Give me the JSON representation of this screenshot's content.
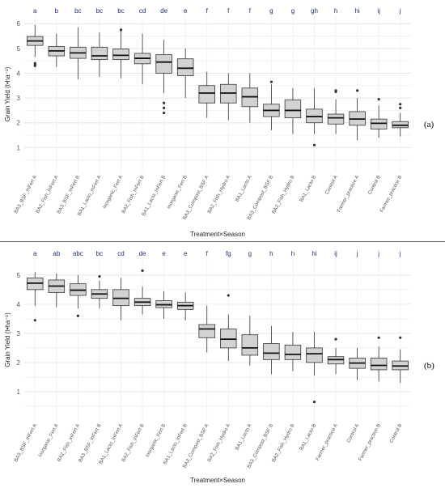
{
  "chart_data": [
    {
      "panel_label": "(a)",
      "type": "box",
      "xlabel": "Treatment×Season",
      "ylabel": "Grain Yield (t•ha⁻¹)",
      "ylim": [
        0,
        6.3
      ],
      "yticks": [
        1,
        2,
        3,
        4,
        5,
        6
      ],
      "grid": true,
      "categories": [
        "BA3_BSF_InFert A",
        "BA2_Fish_InFert A",
        "BA3_BSF_InFert B",
        "BA1_Lacto_InFert A",
        "Inorganic_Fert A",
        "BA2_Fish_InFert B",
        "BA1_Lacto_InFert B",
        "Inorganic_Fert B",
        "BA3_Compost_BSF A",
        "BA2_Fish_Hydro A",
        "BA1_Lacto A",
        "BA3_Compost_BSF B",
        "BA2_Fish_Hydro B",
        "BA1_Lacto B",
        "Control A",
        "Farmer_practice A",
        "Control B",
        "Farmer_practice B"
      ],
      "letters": [
        "a",
        "b",
        "bc",
        "bc",
        "bc",
        "cd",
        "de",
        "e",
        "f",
        "f",
        "f",
        "g",
        "g",
        "gh",
        "h",
        "hi",
        "ij",
        "j"
      ],
      "boxes": [
        {
          "min": 4.65,
          "q1": 5.12,
          "median": 5.3,
          "q3": 5.48,
          "max": 5.95,
          "outliers": [
            4.3,
            4.35,
            4.4
          ]
        },
        {
          "min": 4.25,
          "q1": 4.7,
          "median": 4.9,
          "q3": 5.08,
          "max": 5.6,
          "outliers": []
        },
        {
          "min": 3.75,
          "q1": 4.6,
          "median": 4.82,
          "q3": 5.05,
          "max": 5.85,
          "outliers": []
        },
        {
          "min": 3.85,
          "q1": 4.55,
          "median": 4.7,
          "q3": 5.05,
          "max": 5.65,
          "outliers": []
        },
        {
          "min": 3.8,
          "q1": 4.55,
          "median": 4.72,
          "q3": 4.98,
          "max": 5.75,
          "outliers": [
            5.75
          ]
        },
        {
          "min": 3.55,
          "q1": 4.38,
          "median": 4.6,
          "q3": 4.8,
          "max": 5.6,
          "outliers": []
        },
        {
          "min": 3.2,
          "q1": 4.0,
          "median": 4.45,
          "q3": 4.75,
          "max": 5.35,
          "outliers": [
            2.4,
            2.6,
            2.8
          ]
        },
        {
          "min": 3.0,
          "q1": 3.9,
          "median": 4.2,
          "q3": 4.58,
          "max": 5.0,
          "outliers": []
        },
        {
          "min": 2.2,
          "q1": 2.8,
          "median": 3.2,
          "q3": 3.5,
          "max": 4.05,
          "outliers": []
        },
        {
          "min": 2.1,
          "q1": 2.8,
          "median": 3.2,
          "q3": 3.55,
          "max": 4.0,
          "outliers": []
        },
        {
          "min": 2.0,
          "q1": 2.65,
          "median": 3.05,
          "q3": 3.4,
          "max": 4.0,
          "outliers": []
        },
        {
          "min": 1.7,
          "q1": 2.25,
          "median": 2.5,
          "q3": 2.75,
          "max": 3.55,
          "outliers": [
            3.65
          ]
        },
        {
          "min": 1.55,
          "q1": 2.2,
          "median": 2.5,
          "q3": 2.92,
          "max": 3.4,
          "outliers": []
        },
        {
          "min": 1.55,
          "q1": 2.0,
          "median": 2.25,
          "q3": 2.55,
          "max": 3.4,
          "outliers": [
            1.1
          ]
        },
        {
          "min": 1.55,
          "q1": 1.95,
          "median": 2.2,
          "q3": 2.35,
          "max": 2.95,
          "outliers": [
            3.25,
            3.3
          ]
        },
        {
          "min": 1.3,
          "q1": 1.9,
          "median": 2.15,
          "q3": 2.45,
          "max": 3.0,
          "outliers": [
            3.3
          ]
        },
        {
          "min": 1.4,
          "q1": 1.75,
          "median": 1.98,
          "q3": 2.15,
          "max": 2.7,
          "outliers": [
            2.95
          ]
        },
        {
          "min": 1.45,
          "q1": 1.8,
          "median": 1.9,
          "q3": 2.05,
          "max": 2.4,
          "outliers": [
            2.6,
            2.75
          ]
        }
      ]
    },
    {
      "panel_label": "(b)",
      "type": "box",
      "xlabel": "Treatment×Season",
      "ylabel": "Grain Yield (t•ha⁻¹)",
      "ylim": [
        0,
        5.55
      ],
      "yticks": [
        1,
        2,
        3,
        4,
        5
      ],
      "grid": true,
      "categories": [
        "BA3_BSF_InFert A",
        "Inorganic_Fert A",
        "BA2_Fish_InFert A",
        "BA3_BSF_InFert B",
        "BA1_Lacto_InFert A",
        "BA2_Fish_InFert B",
        "Inorganic_Fert B",
        "BA1_Lacto_InFert B",
        "BA3_Compost_BSF A",
        "BA2_Fish_Hydro A",
        "BA1_Lacto A",
        "BA3_Compost_BSF B",
        "BA2_Fish_Hydro B",
        "BA1_Lacto B",
        "Farmer_practice A",
        "Control A",
        "Farmer_practice B",
        "Control B"
      ],
      "letters": [
        "a",
        "ab",
        "abc",
        "bc",
        "cd",
        "de",
        "e",
        "e",
        "f",
        "fg",
        "g",
        "h",
        "h",
        "hi",
        "ij",
        "j",
        "j",
        "j"
      ],
      "boxes": [
        {
          "min": 3.95,
          "q1": 4.5,
          "median": 4.72,
          "q3": 4.9,
          "max": 5.1,
          "outliers": [
            3.45
          ]
        },
        {
          "min": 3.9,
          "q1": 4.4,
          "median": 4.62,
          "q3": 4.83,
          "max": 5.05,
          "outliers": []
        },
        {
          "min": 3.85,
          "q1": 4.3,
          "median": 4.48,
          "q3": 4.7,
          "max": 5.0,
          "outliers": [
            3.6
          ]
        },
        {
          "min": 3.85,
          "q1": 4.2,
          "median": 4.35,
          "q3": 4.5,
          "max": 4.8,
          "outliers": [
            4.95
          ]
        },
        {
          "min": 3.45,
          "q1": 3.95,
          "median": 4.2,
          "q3": 4.5,
          "max": 4.9,
          "outliers": []
        },
        {
          "min": 3.65,
          "q1": 3.95,
          "median": 4.07,
          "q3": 4.2,
          "max": 4.6,
          "outliers": [
            5.15
          ]
        },
        {
          "min": 3.5,
          "q1": 3.88,
          "median": 3.98,
          "q3": 4.12,
          "max": 4.45,
          "outliers": []
        },
        {
          "min": 3.45,
          "q1": 3.82,
          "median": 3.95,
          "q3": 4.07,
          "max": 4.4,
          "outliers": []
        },
        {
          "min": 2.35,
          "q1": 2.85,
          "median": 3.15,
          "q3": 3.3,
          "max": 3.95,
          "outliers": []
        },
        {
          "min": 2.05,
          "q1": 2.5,
          "median": 2.8,
          "q3": 3.15,
          "max": 3.65,
          "outliers": [
            4.3
          ]
        },
        {
          "min": 1.9,
          "q1": 2.25,
          "median": 2.5,
          "q3": 2.95,
          "max": 3.6,
          "outliers": []
        },
        {
          "min": 1.6,
          "q1": 2.1,
          "median": 2.32,
          "q3": 2.65,
          "max": 3.25,
          "outliers": []
        },
        {
          "min": 1.7,
          "q1": 2.1,
          "median": 2.28,
          "q3": 2.6,
          "max": 3.05,
          "outliers": []
        },
        {
          "min": 1.55,
          "q1": 2.0,
          "median": 2.3,
          "q3": 2.5,
          "max": 3.05,
          "outliers": [
            0.65
          ]
        },
        {
          "min": 1.6,
          "q1": 1.95,
          "median": 2.1,
          "q3": 2.2,
          "max": 2.5,
          "outliers": [
            2.8
          ]
        },
        {
          "min": 1.4,
          "q1": 1.8,
          "median": 1.98,
          "q3": 2.15,
          "max": 2.5,
          "outliers": []
        },
        {
          "min": 1.35,
          "q1": 1.75,
          "median": 1.9,
          "q3": 2.15,
          "max": 2.55,
          "outliers": [
            2.85
          ]
        },
        {
          "min": 1.3,
          "q1": 1.75,
          "median": 1.88,
          "q3": 2.05,
          "max": 2.45,
          "outliers": [
            2.85
          ]
        }
      ]
    }
  ],
  "colors": {
    "box_fill": "#d2d2d2",
    "box_stroke": "#333333",
    "median": "#111111",
    "outlier": "#333333",
    "grid": "#e6e6e6",
    "letters": "#1f2f78",
    "tick_label": "#555555"
  }
}
